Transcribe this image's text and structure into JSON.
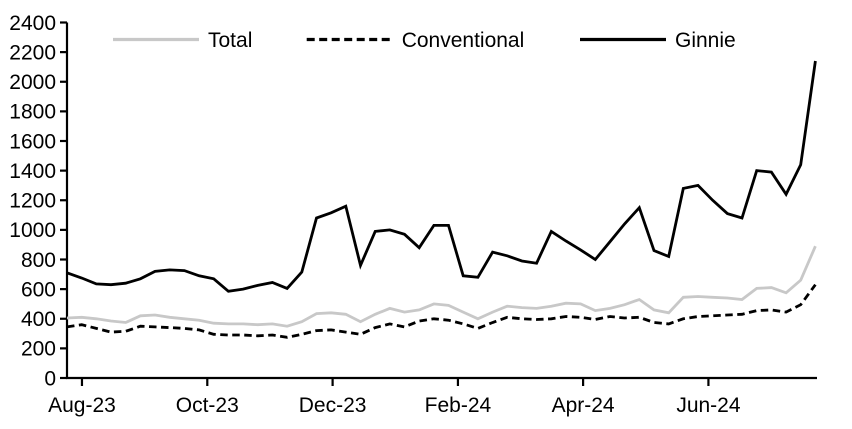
{
  "chart_data": {
    "type": "line",
    "title": "",
    "xlabel": "",
    "ylabel": "",
    "ylim": [
      0,
      2400
    ],
    "ytick_step": 200,
    "grid": false,
    "legend_position": "top",
    "x_ticks": [
      {
        "label": "Aug-23",
        "week_index": 1.02
      },
      {
        "label": "Oct-23",
        "week_index": 9.56
      },
      {
        "label": "Dec-23",
        "week_index": 18.1
      },
      {
        "label": "Feb-24",
        "week_index": 26.64
      },
      {
        "label": "Apr-24",
        "week_index": 35.17
      },
      {
        "label": "Jun-24",
        "week_index": 43.71
      }
    ],
    "series": [
      {
        "name": "Total",
        "color": "#c8c8c8",
        "dashed": false,
        "values": [
          405,
          410,
          400,
          385,
          375,
          420,
          425,
          410,
          400,
          390,
          370,
          365,
          365,
          360,
          365,
          350,
          380,
          435,
          440,
          430,
          380,
          430,
          470,
          445,
          460,
          500,
          490,
          445,
          400,
          445,
          485,
          475,
          470,
          485,
          505,
          500,
          455,
          470,
          495,
          530,
          460,
          440,
          545,
          550,
          545,
          540,
          530,
          605,
          610,
          575,
          660,
          890
        ]
      },
      {
        "name": "Conventional",
        "color": "#000000",
        "dashed": true,
        "values": [
          345,
          360,
          335,
          310,
          315,
          350,
          345,
          340,
          335,
          325,
          295,
          290,
          290,
          285,
          290,
          275,
          295,
          320,
          325,
          310,
          295,
          340,
          365,
          345,
          385,
          400,
          390,
          365,
          335,
          375,
          410,
          400,
          395,
          400,
          415,
          410,
          395,
          415,
          405,
          410,
          375,
          365,
          400,
          415,
          420,
          425,
          430,
          455,
          460,
          445,
          495,
          630
        ]
      },
      {
        "name": "Ginnie",
        "color": "#000000",
        "dashed": false,
        "values": [
          710,
          675,
          635,
          630,
          640,
          670,
          720,
          730,
          725,
          690,
          670,
          585,
          600,
          625,
          645,
          605,
          715,
          1080,
          1115,
          1160,
          760,
          990,
          1000,
          970,
          880,
          1030,
          1030,
          690,
          680,
          850,
          825,
          790,
          775,
          990,
          925,
          865,
          800,
          920,
          1040,
          1150,
          860,
          820,
          1280,
          1300,
          1200,
          1110,
          1080,
          1400,
          1390,
          1240,
          1440,
          2140
        ]
      }
    ],
    "y_tick_labels": [
      "0",
      "200",
      "400",
      "600",
      "800",
      "1000",
      "1200",
      "1400",
      "1600",
      "1800",
      "2000",
      "2200",
      "2400"
    ],
    "axis_color": "#000000"
  }
}
